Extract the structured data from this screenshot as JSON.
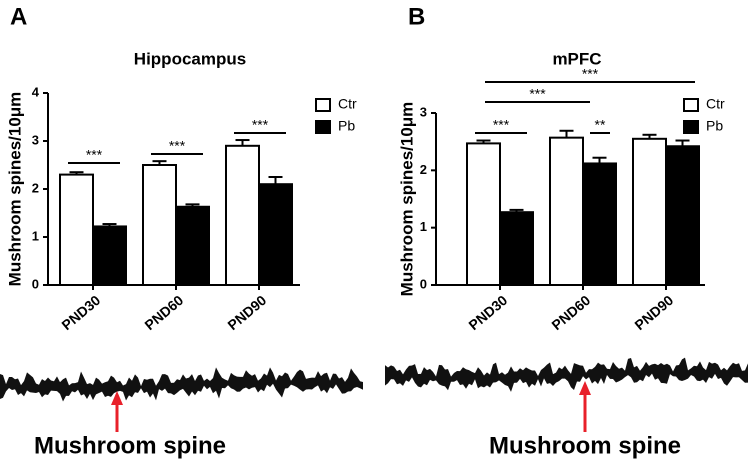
{
  "chart_data": [
    {
      "type": "bar",
      "panel_label": "A",
      "title": "Hippocampus",
      "ylabel": "Mushroom spines/10μm",
      "categories": [
        "PND30",
        "PND60",
        "PND90"
      ],
      "series": [
        {
          "name": "Ctr",
          "color": "#ffffff",
          "values": [
            2.3,
            2.5,
            2.9
          ],
          "errors": [
            0.05,
            0.08,
            0.12
          ]
        },
        {
          "name": "Pb",
          "color": "#000000",
          "values": [
            1.22,
            1.63,
            2.1
          ],
          "errors": [
            0.05,
            0.05,
            0.15
          ]
        }
      ],
      "ylim": [
        0,
        4
      ],
      "yticks": [
        0,
        1,
        2,
        3,
        4
      ],
      "annotations": [
        "***",
        "***",
        "***"
      ],
      "caption": "Mushroom spine"
    },
    {
      "type": "bar",
      "panel_label": "B",
      "title": "mPFC",
      "ylabel": "Mushroom spines/10μm",
      "categories": [
        "PND30",
        "PND60",
        "PND90"
      ],
      "series": [
        {
          "name": "Ctr",
          "color": "#ffffff",
          "values": [
            2.47,
            2.57,
            2.55
          ],
          "errors": [
            0.05,
            0.12,
            0.07
          ]
        },
        {
          "name": "Pb",
          "color": "#000000",
          "values": [
            1.27,
            2.12,
            2.42
          ],
          "errors": [
            0.04,
            0.1,
            0.1
          ]
        }
      ],
      "ylim": [
        0,
        3
      ],
      "yticks": [
        0,
        1,
        2,
        3
      ],
      "annotations": [
        "***",
        "**",
        "***",
        "***"
      ],
      "caption": "Mushroom spine"
    }
  ]
}
